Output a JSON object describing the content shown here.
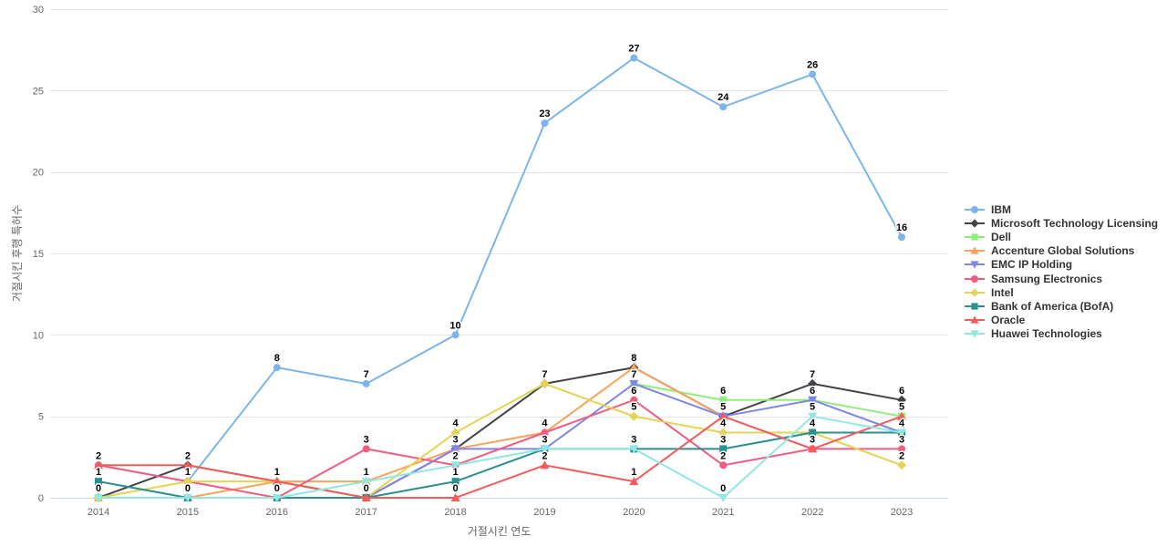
{
  "chart_data": {
    "type": "line",
    "xlabel": "거절시킨 연도",
    "ylabel": "거절시킨 후행 특허수",
    "categories": [
      "2014",
      "2015",
      "2016",
      "2017",
      "2018",
      "2019",
      "2020",
      "2021",
      "2022",
      "2023"
    ],
    "ylim": [
      0,
      30
    ],
    "yticks": [
      0,
      5,
      10,
      15,
      20,
      25,
      30
    ],
    "grid": "horizontal-only",
    "gridline_color": "#e6e6e6",
    "axis_line_color": "#ccd6eb",
    "tick_label_color": "#666666",
    "data_labels_shown": true,
    "legend_position": "right-center",
    "series": [
      {
        "name": "IBM",
        "color": "#7cb5ec",
        "marker": "circle",
        "values": [
          2,
          1,
          8,
          7,
          10,
          23,
          27,
          24,
          26,
          16
        ]
      },
      {
        "name": "Microsoft Technology Licensing",
        "color": "#434348",
        "marker": "diamond",
        "values": [
          0,
          2,
          1,
          0,
          3,
          7,
          8,
          5,
          7,
          6
        ]
      },
      {
        "name": "Dell",
        "color": "#90ed7d",
        "marker": "square",
        "values": [
          null,
          null,
          null,
          null,
          null,
          null,
          7,
          6,
          6,
          5
        ]
      },
      {
        "name": "Accenture Global Solutions",
        "color": "#f7a35c",
        "marker": "triangle",
        "values": [
          0,
          0,
          1,
          1,
          3,
          4,
          8,
          5,
          null,
          null
        ]
      },
      {
        "name": "EMC IP Holding",
        "color": "#8085e9",
        "marker": "triangle-down",
        "values": [
          null,
          null,
          null,
          0,
          3,
          3,
          7,
          5,
          6,
          4
        ]
      },
      {
        "name": "Samsung Electronics",
        "color": "#f15c80",
        "marker": "circle",
        "values": [
          2,
          1,
          0,
          3,
          2,
          4,
          6,
          2,
          3,
          3
        ]
      },
      {
        "name": "Intel",
        "color": "#e4d354",
        "marker": "diamond",
        "values": [
          0,
          1,
          1,
          0,
          4,
          7,
          5,
          4,
          4,
          2
        ]
      },
      {
        "name": "Bank of America (BofA)",
        "color": "#2b908f",
        "marker": "square",
        "values": [
          1,
          0,
          0,
          0,
          1,
          3,
          3,
          3,
          4,
          4
        ]
      },
      {
        "name": "Oracle",
        "color": "#f45b5b",
        "marker": "triangle",
        "values": [
          2,
          2,
          1,
          0,
          0,
          2,
          1,
          5,
          3,
          5
        ]
      },
      {
        "name": "Huawei Technologies",
        "color": "#91e8e1",
        "marker": "triangle-down",
        "values": [
          0,
          0,
          0,
          1,
          2,
          3,
          3,
          0,
          5,
          4
        ]
      }
    ]
  }
}
